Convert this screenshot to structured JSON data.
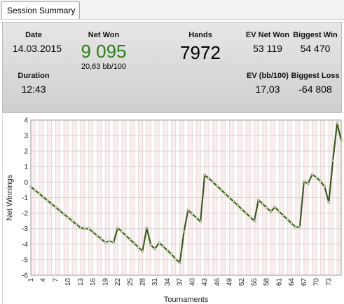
{
  "tab": {
    "label": "Session Summary"
  },
  "summary": {
    "date_label": "Date",
    "date_value": "14.03.2015",
    "duration_label": "Duration",
    "duration_value": "12:43",
    "netwon_label": "Net Won",
    "netwon_value": "9 095",
    "netwon_sub": "20,63 bb/100",
    "hands_label": "Hands",
    "hands_value": "7972",
    "ev_net_label": "EV Net Won",
    "ev_net_value": "53 119",
    "ev_bb_label": "EV (bb/100)",
    "ev_bb_value": "17,03",
    "biggest_win_label": "Biggest Win",
    "biggest_win_value": "54 470",
    "biggest_loss_label": "Biggest Loss",
    "biggest_loss_value": "-64 808",
    "netwon_color": "#2c7d17"
  },
  "chart_data": {
    "type": "line",
    "xlabel": "Tournaments",
    "ylabel": "Net Winnings",
    "xlim": [
      1,
      76
    ],
    "ylim": [
      -6,
      4
    ],
    "yticks": [
      -6,
      -5,
      -4,
      -3,
      -2,
      -1,
      0,
      1,
      2,
      3,
      4
    ],
    "xticks": [
      1,
      4,
      7,
      10,
      13,
      16,
      19,
      22,
      25,
      28,
      31,
      34,
      37,
      40,
      43,
      46,
      49,
      52,
      55,
      58,
      61,
      64,
      67,
      70,
      73
    ],
    "grid": true,
    "line_color": "#3d5a1e",
    "series": [
      {
        "x": [
          1,
          2,
          3,
          4,
          5,
          6,
          7,
          8,
          9,
          10,
          11,
          12,
          13,
          14,
          15,
          16,
          17,
          18,
          19,
          20,
          21,
          22,
          23,
          24,
          25,
          26,
          27,
          28,
          29,
          30,
          31,
          32,
          33,
          34,
          35,
          36,
          37,
          38,
          39,
          40,
          41,
          42,
          43,
          44,
          45,
          46,
          47,
          48,
          49,
          50,
          51,
          52,
          53,
          54,
          55,
          56,
          57,
          58,
          59,
          60,
          61,
          62,
          63,
          64,
          65,
          66,
          67,
          68,
          69,
          70,
          71,
          72,
          73,
          74,
          75,
          76
        ],
        "y": [
          -0.3,
          -0.52,
          -0.74,
          -0.96,
          -1.18,
          -1.4,
          -1.62,
          -1.84,
          -2.06,
          -2.28,
          -2.5,
          -2.72,
          -2.94,
          -3.0,
          -3.0,
          -3.22,
          -3.44,
          -3.66,
          -3.88,
          -3.8,
          -3.88,
          -2.95,
          -3.2,
          -3.45,
          -3.7,
          -3.95,
          -4.2,
          -4.45,
          -2.95,
          -4.05,
          -4.3,
          -3.9,
          -4.15,
          -4.4,
          -4.65,
          -4.95,
          -5.2,
          -3.2,
          -1.8,
          -2.05,
          -2.3,
          -2.55,
          0.45,
          0.25,
          0.0,
          -0.25,
          -0.5,
          -0.75,
          -1.0,
          -1.25,
          -1.5,
          -1.75,
          -2.0,
          -2.25,
          -2.5,
          -1.15,
          -1.4,
          -1.65,
          -1.9,
          -1.6,
          -1.9,
          -2.15,
          -2.4,
          -2.65,
          -2.9,
          -2.9,
          0.05,
          -0.1,
          0.5,
          0.3,
          0.05,
          -0.3,
          -1.3,
          1.4,
          3.8,
          2.7
        ]
      }
    ]
  }
}
